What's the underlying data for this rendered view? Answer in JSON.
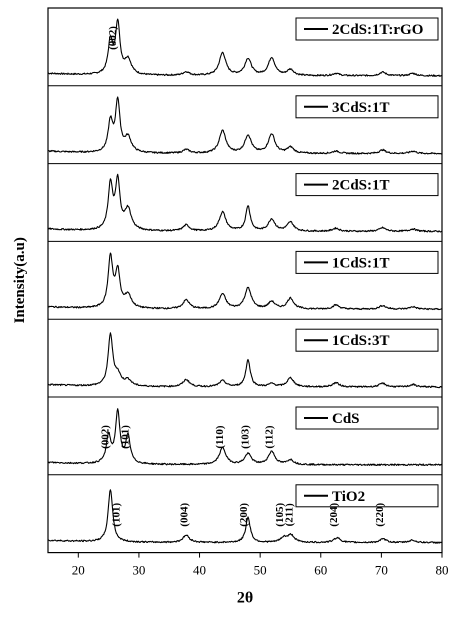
{
  "chart_data": {
    "type": "line",
    "layout": "stacked-panels",
    "xlabel": "2θ",
    "ylabel": "Intensity(a.u)",
    "xlim": [
      15,
      80
    ],
    "x_ticks": [
      20,
      30,
      40,
      50,
      60,
      70,
      80
    ],
    "grid": false,
    "legend_placement": "top-right of each panel",
    "panels": [
      {
        "name": "2CdS:1T:rGO",
        "peaks": [
          [
            25.3,
            0.55
          ],
          [
            26.5,
            0.85
          ],
          [
            28.2,
            0.25
          ],
          [
            37.8,
            0.06
          ],
          [
            43.8,
            0.38
          ],
          [
            48.0,
            0.28
          ],
          [
            51.9,
            0.3
          ],
          [
            55.0,
            0.1
          ],
          [
            62.5,
            0.04
          ],
          [
            70.2,
            0.06
          ],
          [
            75.2,
            0.04
          ]
        ],
        "annotations": [
          {
            "label": "(002)",
            "x": 26.2
          }
        ]
      },
      {
        "name": "3CdS:1T",
        "peaks": [
          [
            25.3,
            0.5
          ],
          [
            26.5,
            0.85
          ],
          [
            28.2,
            0.25
          ],
          [
            37.8,
            0.06
          ],
          [
            43.8,
            0.38
          ],
          [
            48.0,
            0.3
          ],
          [
            51.9,
            0.32
          ],
          [
            55.0,
            0.1
          ],
          [
            62.5,
            0.04
          ],
          [
            70.2,
            0.06
          ],
          [
            75.2,
            0.04
          ]
        ],
        "annotations": []
      },
      {
        "name": "2CdS:1T",
        "peaks": [
          [
            25.3,
            0.75
          ],
          [
            26.5,
            0.8
          ],
          [
            28.2,
            0.35
          ],
          [
            37.8,
            0.1
          ],
          [
            43.8,
            0.32
          ],
          [
            48.0,
            0.42
          ],
          [
            51.9,
            0.2
          ],
          [
            55.0,
            0.15
          ],
          [
            62.5,
            0.05
          ],
          [
            70.2,
            0.06
          ],
          [
            75.2,
            0.04
          ]
        ],
        "annotations": []
      },
      {
        "name": "1CdS:1T",
        "peaks": [
          [
            25.3,
            0.85
          ],
          [
            26.5,
            0.6
          ],
          [
            28.2,
            0.22
          ],
          [
            37.8,
            0.15
          ],
          [
            43.8,
            0.25
          ],
          [
            48.0,
            0.35
          ],
          [
            51.9,
            0.12
          ],
          [
            55.0,
            0.18
          ],
          [
            62.5,
            0.07
          ],
          [
            70.2,
            0.06
          ],
          [
            75.2,
            0.04
          ]
        ],
        "annotations": []
      },
      {
        "name": "1CdS:3T",
        "peaks": [
          [
            25.3,
            0.85
          ],
          [
            26.5,
            0.18
          ],
          [
            28.2,
            0.1
          ],
          [
            37.8,
            0.12
          ],
          [
            43.8,
            0.1
          ],
          [
            48.0,
            0.45
          ],
          [
            51.9,
            0.05
          ],
          [
            55.0,
            0.15
          ],
          [
            62.5,
            0.07
          ],
          [
            70.2,
            0.06
          ],
          [
            75.2,
            0.04
          ]
        ],
        "annotations": []
      },
      {
        "name": "CdS",
        "peaks": [
          [
            25.0,
            0.45
          ],
          [
            26.5,
            0.85
          ],
          [
            28.2,
            0.45
          ],
          [
            43.8,
            0.28
          ],
          [
            48.0,
            0.18
          ],
          [
            51.9,
            0.22
          ],
          [
            55.0,
            0.08
          ]
        ],
        "annotations": [
          {
            "label": "(002)",
            "x": 25.0
          },
          {
            "label": "(101)",
            "x": 28.3
          },
          {
            "label": "(110)",
            "x": 43.9
          },
          {
            "label": "(103)",
            "x": 48.1
          },
          {
            "label": "(112)",
            "x": 52.0
          }
        ]
      },
      {
        "name": "TiO2",
        "peaks": [
          [
            25.3,
            0.88
          ],
          [
            37.8,
            0.12
          ],
          [
            48.0,
            0.42
          ],
          [
            53.9,
            0.08
          ],
          [
            55.1,
            0.12
          ],
          [
            62.7,
            0.08
          ],
          [
            70.3,
            0.06
          ],
          [
            75.1,
            0.04
          ]
        ],
        "annotations": [
          {
            "label": "(101)",
            "x": 26.8
          },
          {
            "label": "(004)",
            "x": 38.0
          },
          {
            "label": "(200)",
            "x": 47.8
          },
          {
            "label": "(105)",
            "x": 53.8
          },
          {
            "label": "(211)",
            "x": 55.3
          },
          {
            "label": "(204)",
            "x": 62.7
          },
          {
            "label": "(220)",
            "x": 70.3
          }
        ]
      }
    ]
  }
}
